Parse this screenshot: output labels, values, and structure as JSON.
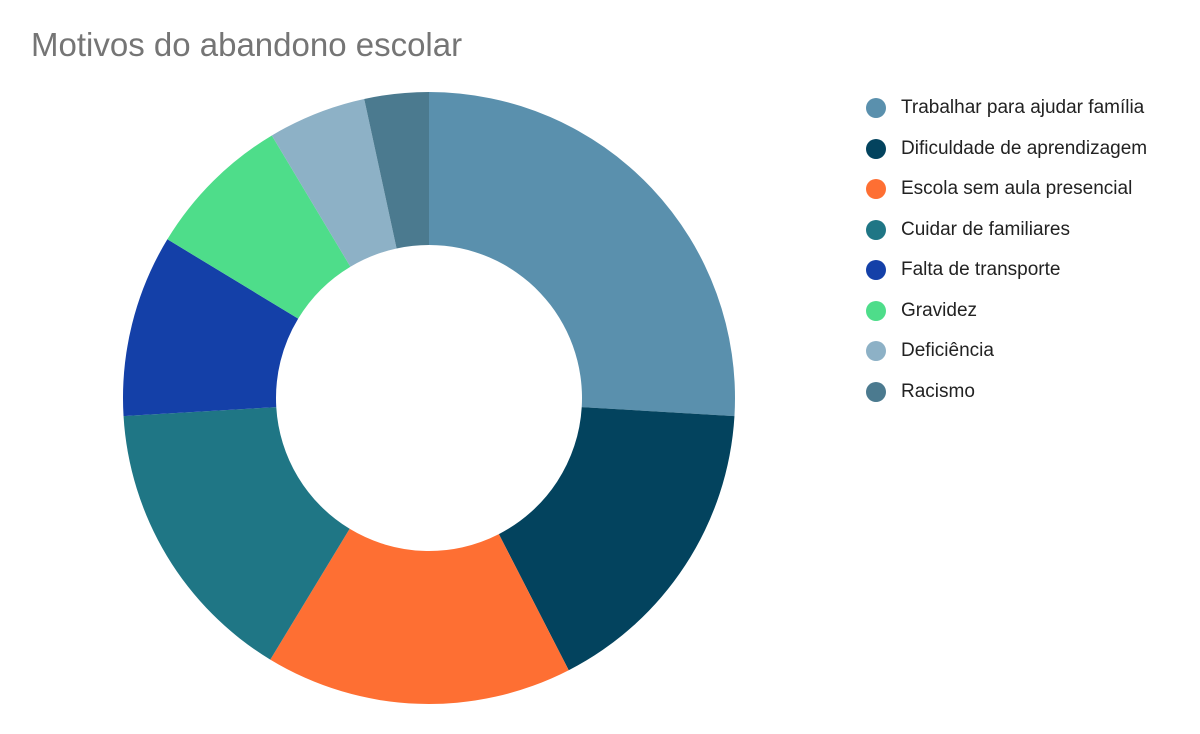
{
  "chart_data": {
    "type": "pie",
    "variant": "donut",
    "title": "Motivos do abandono escolar",
    "legend_position": "right",
    "slices": [
      {
        "label": "Trabalhar para ajudar família",
        "value": 27.5,
        "color": "#5a90ad"
      },
      {
        "label": "Dificuldade de aprendizagem",
        "value": 17.5,
        "color": "#03435e"
      },
      {
        "label": "Escola sem aula presencial",
        "value": 17.2,
        "color": "#fe6f33"
      },
      {
        "label": "Cuidar de familiares",
        "value": 16.3,
        "color": "#1f7685"
      },
      {
        "label": "Falta de transporte",
        "value": 10.2,
        "color": "#1440a8"
      },
      {
        "label": "Gravidez",
        "value": 8.2,
        "color": "#4edd8a"
      },
      {
        "label": "Deficiência",
        "value": 5.5,
        "color": "#8db1c6"
      },
      {
        "label": "Racismo",
        "value": 3.6,
        "color": "#4b7a8f"
      }
    ]
  }
}
